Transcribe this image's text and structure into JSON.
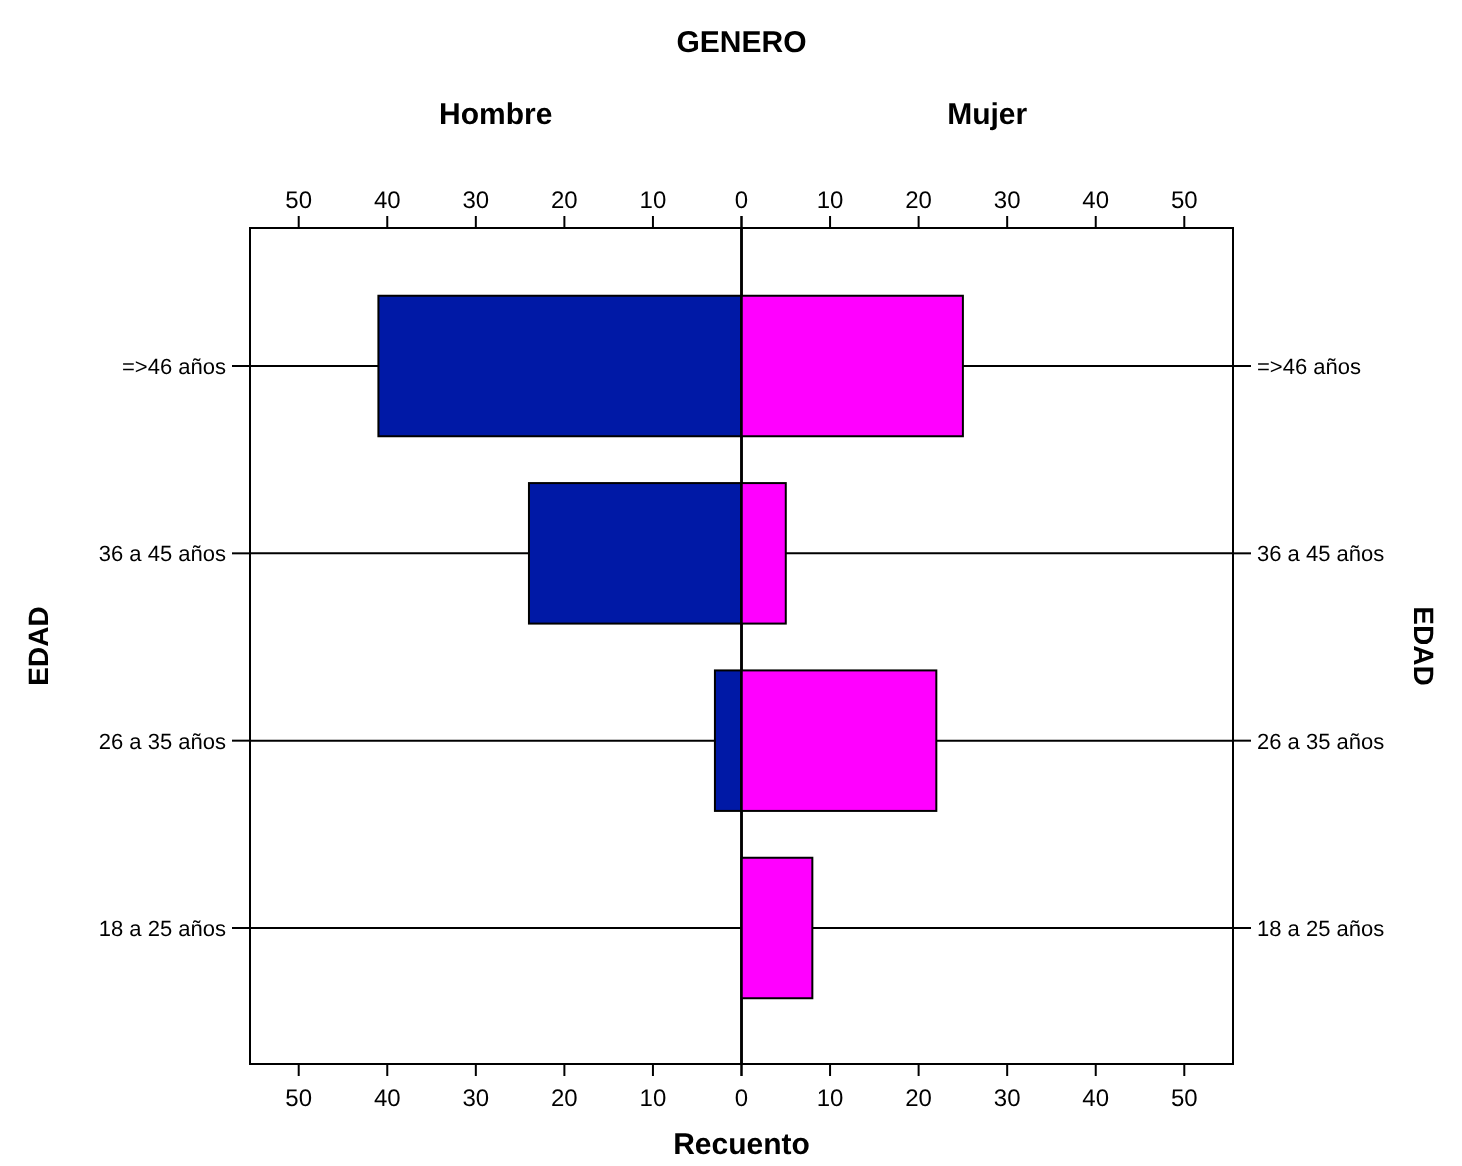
{
  "chart_data": [
    {
      "type": "bar",
      "orientation": "horizontal",
      "title": "Hombre",
      "annotations": [
        "GENERO"
      ],
      "xlabel": "Recuento",
      "ylabel": "EDAD",
      "categories": [
        "=>46 años",
        "36 a 45 años",
        "26 a 35 años",
        "18 a 25 años"
      ],
      "values": [
        41,
        24,
        3,
        0
      ],
      "color": "#0019a6",
      "xlim": [
        55.5,
        0
      ],
      "xticks": [
        50,
        40,
        30,
        20,
        10,
        {
          "value": 0,
          "label": null
        }
      ],
      "x2lim": [
        55.5,
        0
      ],
      "x2ticks": [
        50,
        40,
        30,
        20,
        10,
        {
          "value": 0,
          "label": null
        }
      ],
      "grid": "y"
    },
    {
      "type": "bar",
      "orientation": "horizontal",
      "title": "Mujer",
      "ylabel": "EDAD",
      "categories": [
        "=>46 años",
        "36 a 45 años",
        "26 a 35 años",
        "18 a 25 años"
      ],
      "values": [
        25,
        5,
        22,
        8
      ],
      "color": "#ff00ff",
      "xlim": [
        0,
        55.5
      ],
      "xticks": [
        0,
        10,
        20,
        30,
        40,
        50
      ],
      "x2lim": [
        0,
        55.5
      ],
      "x2ticks": [
        0,
        10,
        20,
        30,
        40,
        50
      ],
      "grid": "y"
    }
  ]
}
